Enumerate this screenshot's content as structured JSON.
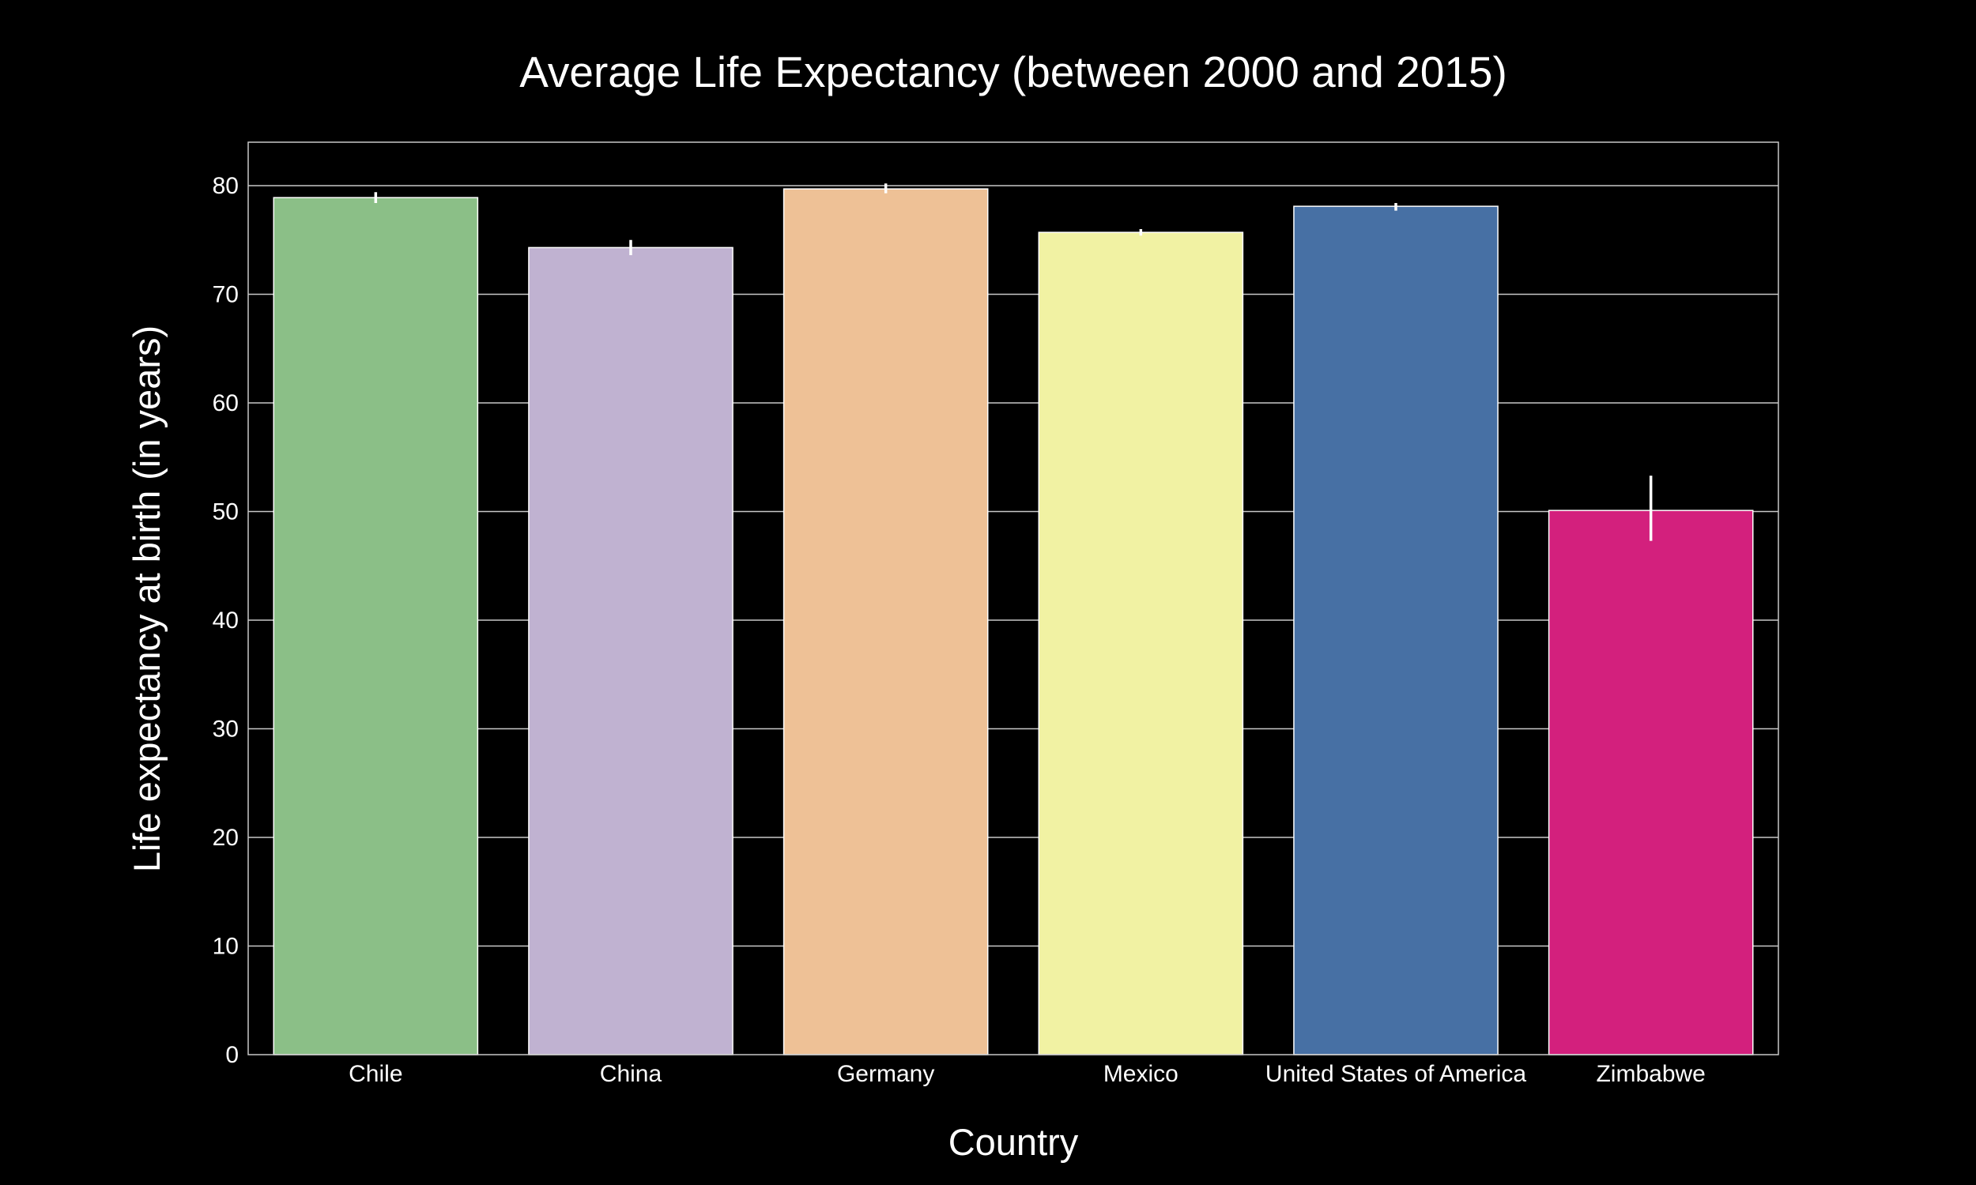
{
  "chart_data": {
    "type": "bar",
    "title": "Average Life Expectancy (between 2000 and 2015)",
    "xlabel": "Country",
    "ylabel": "Life expectancy at birth (in years)",
    "categories": [
      "Chile",
      "China",
      "Germany",
      "Mexico",
      "United States of America",
      "Zimbabwe"
    ],
    "values": [
      78.9,
      74.3,
      79.7,
      75.7,
      78.1,
      50.1
    ],
    "error_low": [
      78.4,
      73.6,
      79.3,
      75.4,
      77.7,
      47.3
    ],
    "error_high": [
      79.4,
      75.0,
      80.2,
      76.0,
      78.4,
      53.3
    ],
    "colors": [
      "#8bbf87",
      "#c0b2d1",
      "#eec196",
      "#f1f2a3",
      "#4770a4",
      "#d3207d"
    ],
    "ylim": [
      0,
      84
    ],
    "yticks": [
      "0",
      "10",
      "20",
      "30",
      "40",
      "50",
      "60",
      "70",
      "80"
    ],
    "grid": true,
    "background": "#000000"
  }
}
